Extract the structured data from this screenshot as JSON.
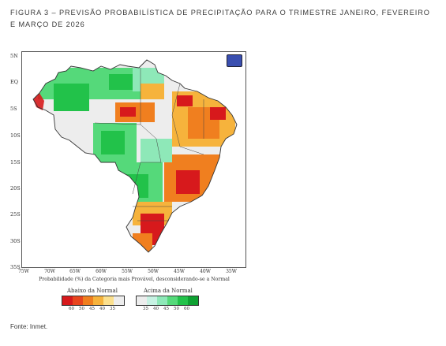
{
  "caption": "FIGURA 3 – PREVISÃO PROBABILÍSTICA DE PRECIPITAÇÃO PARA O TRIMESTRE JANEIRO, FEVEREIRO E MARÇO DE 2026",
  "source": "Fonte: Inmet.",
  "map": {
    "lat_ticks": [
      "5N",
      "EQ",
      "5S",
      "10S",
      "15S",
      "20S",
      "25S",
      "30S",
      "35S"
    ],
    "lon_ticks": [
      "75W",
      "70W",
      "65W",
      "60W",
      "55W",
      "50W",
      "45W",
      "40W",
      "35W"
    ],
    "legend_title": "Probabilidade (%) da Categoria mais Provável, desconsiderando-se a Normal",
    "below": {
      "label": "Abaixo da Normal",
      "colors": [
        "#d7191c",
        "#e8451e",
        "#f07f1f",
        "#f6b33c",
        "#fbe08e",
        "#ededed"
      ],
      "values": [
        "60",
        "50",
        "45",
        "40",
        "35"
      ]
    },
    "above": {
      "label": "Acima da Normal",
      "colors": [
        "#ededed",
        "#c7f2e3",
        "#8ee8b8",
        "#55d97a",
        "#22c24a",
        "#0ea132"
      ],
      "values": [
        "35",
        "40",
        "45",
        "50",
        "60"
      ]
    }
  }
}
